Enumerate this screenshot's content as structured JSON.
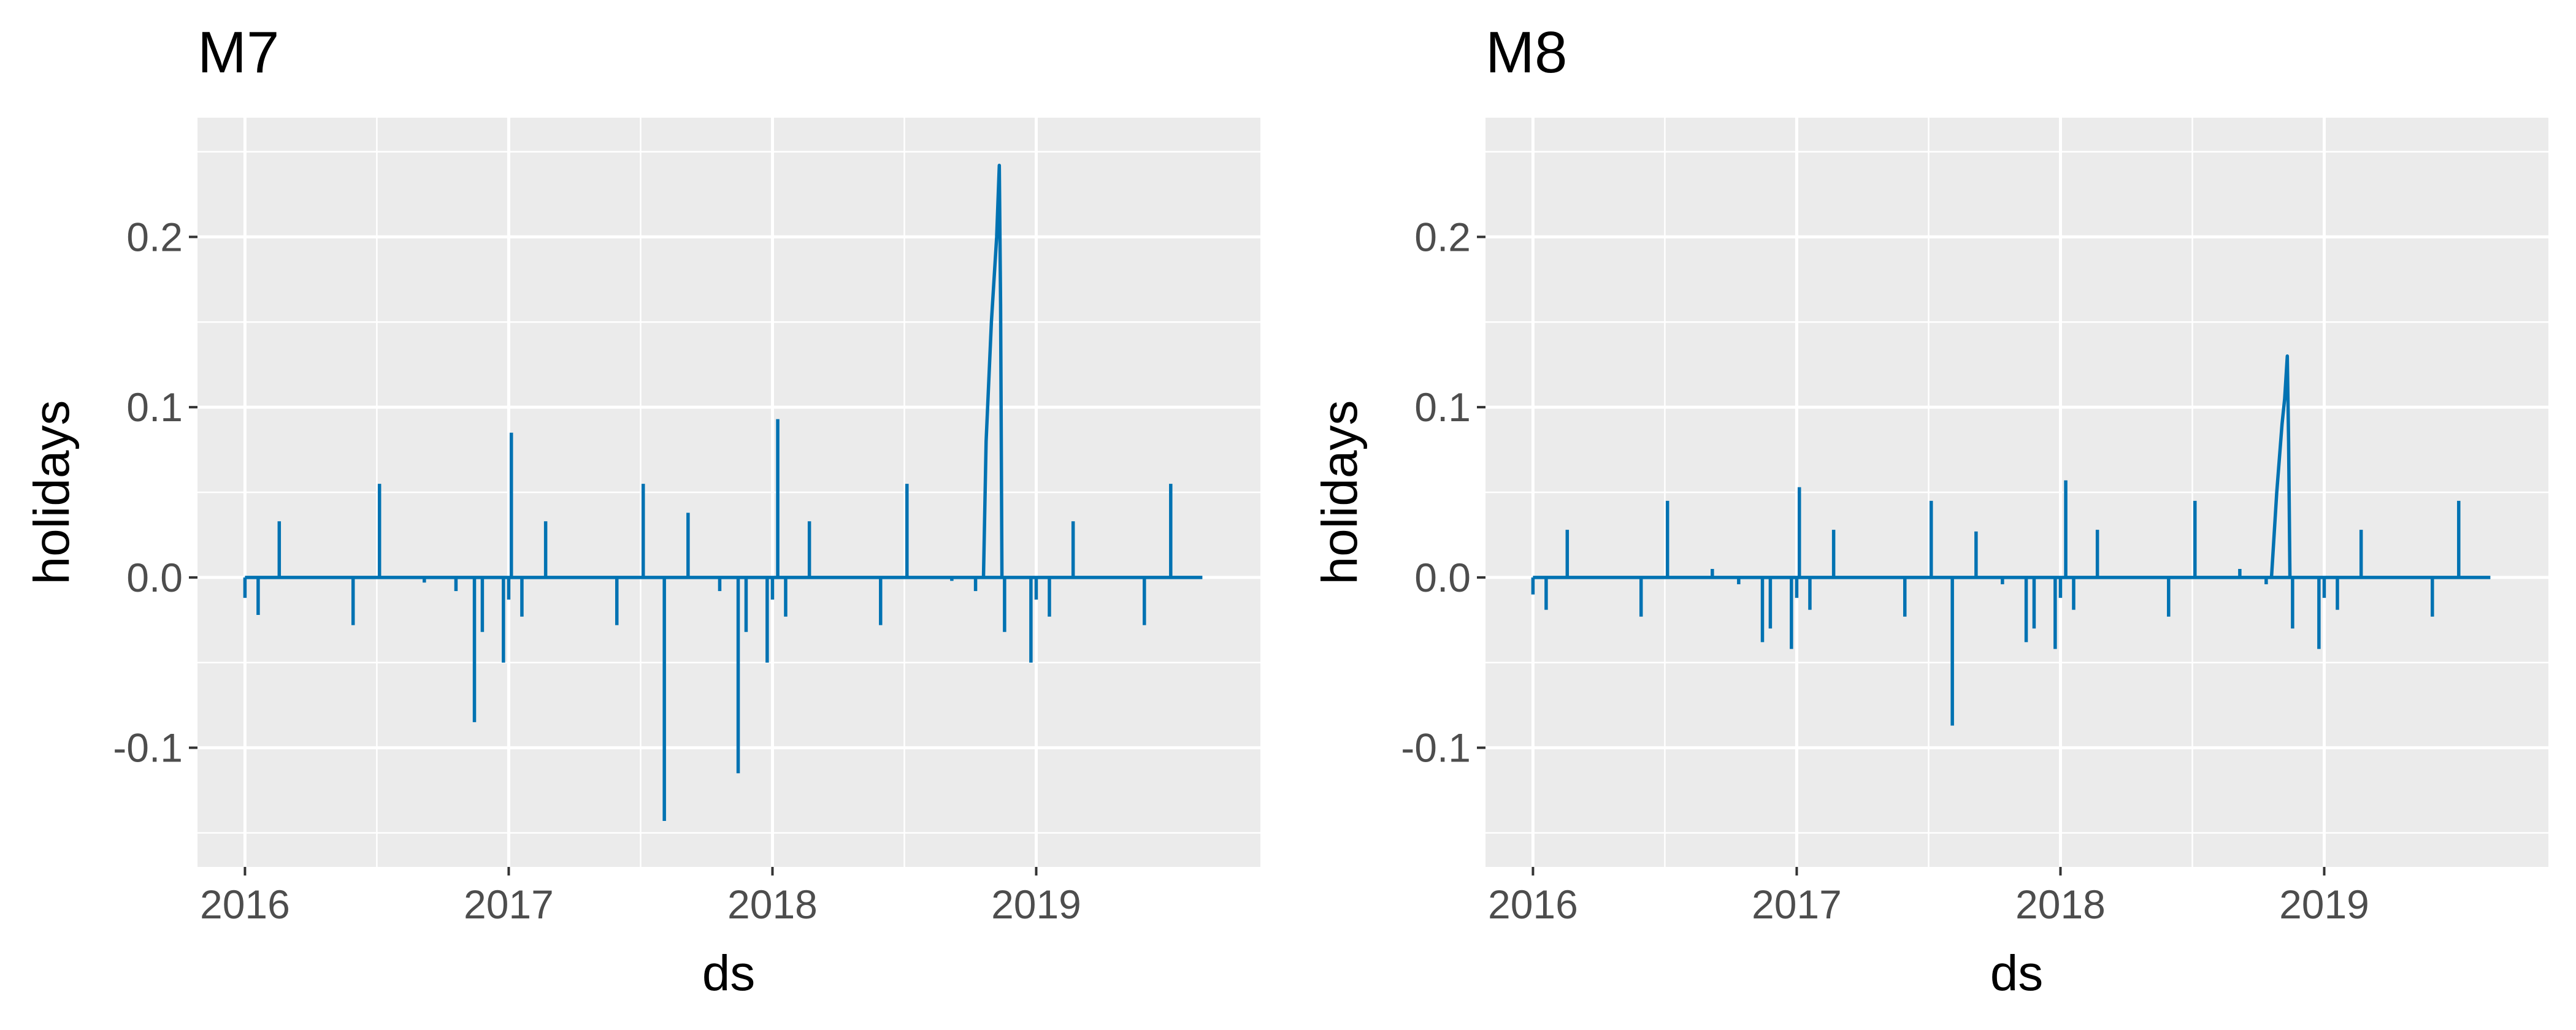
{
  "figure": {
    "series_color": "#0072B2",
    "panel_background": "#EBEBEB",
    "grid_color": "#FFFFFF",
    "text_color": "#000000",
    "tick_color": "#4D4D4D"
  },
  "chart_data": [
    {
      "type": "line",
      "title": "M7",
      "xlabel": "ds",
      "ylabel": "holidays",
      "grid": true,
      "xlim": [
        2015.82,
        2019.85
      ],
      "ylim": [
        -0.17,
        0.27
      ],
      "x_ticks": [
        2016,
        2017,
        2018,
        2019
      ],
      "x_tick_labels": [
        "2016",
        "2017",
        "2018",
        "2019"
      ],
      "y_ticks": [
        -0.1,
        0.0,
        0.1,
        0.2
      ],
      "y_tick_labels": [
        "-0.1",
        "0.0",
        "0.1",
        "0.2"
      ],
      "baseline": 0.0,
      "x_range": [
        2016.0,
        2019.63
      ],
      "spikes": [
        {
          "x": 2016.0,
          "y": -0.012
        },
        {
          "x": 2016.05,
          "y": -0.022
        },
        {
          "x": 2016.13,
          "y": 0.033
        },
        {
          "x": 2016.41,
          "y": -0.028
        },
        {
          "x": 2016.51,
          "y": 0.055
        },
        {
          "x": 2016.68,
          "y": -0.003
        },
        {
          "x": 2016.8,
          "y": -0.008
        },
        {
          "x": 2016.87,
          "y": -0.085
        },
        {
          "x": 2016.9,
          "y": -0.032
        },
        {
          "x": 2016.98,
          "y": -0.05
        },
        {
          "x": 2017.0,
          "y": -0.013
        },
        {
          "x": 2017.01,
          "y": 0.085
        },
        {
          "x": 2017.05,
          "y": -0.023
        },
        {
          "x": 2017.14,
          "y": 0.033
        },
        {
          "x": 2017.41,
          "y": -0.028
        },
        {
          "x": 2017.51,
          "y": 0.055
        },
        {
          "x": 2017.59,
          "y": -0.143
        },
        {
          "x": 2017.68,
          "y": 0.038
        },
        {
          "x": 2017.8,
          "y": -0.008
        },
        {
          "x": 2017.87,
          "y": -0.115
        },
        {
          "x": 2017.9,
          "y": -0.032
        },
        {
          "x": 2017.98,
          "y": -0.05
        },
        {
          "x": 2018.0,
          "y": -0.013
        },
        {
          "x": 2018.02,
          "y": 0.093
        },
        {
          "x": 2018.05,
          "y": -0.023
        },
        {
          "x": 2018.14,
          "y": 0.033
        },
        {
          "x": 2018.41,
          "y": -0.028
        },
        {
          "x": 2018.51,
          "y": 0.055
        },
        {
          "x": 2018.68,
          "y": -0.002
        },
        {
          "x": 2018.77,
          "y": -0.008
        },
        {
          "x": 2018.88,
          "y": -0.032
        },
        {
          "x": 2018.98,
          "y": -0.05
        },
        {
          "x": 2019.0,
          "y": -0.013
        },
        {
          "x": 2019.05,
          "y": -0.023
        },
        {
          "x": 2019.14,
          "y": 0.033
        },
        {
          "x": 2019.41,
          "y": -0.028
        },
        {
          "x": 2019.51,
          "y": 0.055
        }
      ],
      "peak": [
        {
          "x": 2018.8,
          "y": 0.0
        },
        {
          "x": 2018.81,
          "y": 0.08
        },
        {
          "x": 2018.83,
          "y": 0.15
        },
        {
          "x": 2018.85,
          "y": 0.2
        },
        {
          "x": 2018.86,
          "y": 0.242
        },
        {
          "x": 2018.865,
          "y": 0.16
        },
        {
          "x": 2018.87,
          "y": 0.0
        }
      ]
    },
    {
      "type": "line",
      "title": "M8",
      "xlabel": "ds",
      "ylabel": "holidays",
      "grid": true,
      "xlim": [
        2015.82,
        2019.85
      ],
      "ylim": [
        -0.17,
        0.27
      ],
      "x_ticks": [
        2016,
        2017,
        2018,
        2019
      ],
      "x_tick_labels": [
        "2016",
        "2017",
        "2018",
        "2019"
      ],
      "y_ticks": [
        -0.1,
        0.0,
        0.1,
        0.2
      ],
      "y_tick_labels": [
        "-0.1",
        "0.0",
        "0.1",
        "0.2"
      ],
      "baseline": 0.0,
      "x_range": [
        2016.0,
        2019.63
      ],
      "spikes": [
        {
          "x": 2016.0,
          "y": -0.01
        },
        {
          "x": 2016.05,
          "y": -0.019
        },
        {
          "x": 2016.13,
          "y": 0.028
        },
        {
          "x": 2016.41,
          "y": -0.023
        },
        {
          "x": 2016.51,
          "y": 0.045
        },
        {
          "x": 2016.68,
          "y": 0.005
        },
        {
          "x": 2016.78,
          "y": -0.004
        },
        {
          "x": 2016.87,
          "y": -0.038
        },
        {
          "x": 2016.9,
          "y": -0.03
        },
        {
          "x": 2016.98,
          "y": -0.042
        },
        {
          "x": 2017.0,
          "y": -0.012
        },
        {
          "x": 2017.01,
          "y": 0.053
        },
        {
          "x": 2017.05,
          "y": -0.019
        },
        {
          "x": 2017.14,
          "y": 0.028
        },
        {
          "x": 2017.41,
          "y": -0.023
        },
        {
          "x": 2017.51,
          "y": 0.045
        },
        {
          "x": 2017.59,
          "y": -0.087
        },
        {
          "x": 2017.68,
          "y": 0.027
        },
        {
          "x": 2017.78,
          "y": -0.004
        },
        {
          "x": 2017.87,
          "y": -0.038
        },
        {
          "x": 2017.9,
          "y": -0.03
        },
        {
          "x": 2017.98,
          "y": -0.042
        },
        {
          "x": 2018.0,
          "y": -0.012
        },
        {
          "x": 2018.02,
          "y": 0.057
        },
        {
          "x": 2018.05,
          "y": -0.019
        },
        {
          "x": 2018.14,
          "y": 0.028
        },
        {
          "x": 2018.41,
          "y": -0.023
        },
        {
          "x": 2018.51,
          "y": 0.045
        },
        {
          "x": 2018.68,
          "y": 0.005
        },
        {
          "x": 2018.78,
          "y": -0.004
        },
        {
          "x": 2018.88,
          "y": -0.03
        },
        {
          "x": 2018.98,
          "y": -0.042
        },
        {
          "x": 2019.0,
          "y": -0.012
        },
        {
          "x": 2019.05,
          "y": -0.019
        },
        {
          "x": 2019.14,
          "y": 0.028
        },
        {
          "x": 2019.41,
          "y": -0.023
        },
        {
          "x": 2019.51,
          "y": 0.045
        }
      ],
      "peak": [
        {
          "x": 2018.8,
          "y": 0.0
        },
        {
          "x": 2018.82,
          "y": 0.05
        },
        {
          "x": 2018.84,
          "y": 0.09
        },
        {
          "x": 2018.85,
          "y": 0.105
        },
        {
          "x": 2018.86,
          "y": 0.13
        },
        {
          "x": 2018.865,
          "y": 0.08
        },
        {
          "x": 2018.87,
          "y": 0.0
        }
      ]
    }
  ]
}
